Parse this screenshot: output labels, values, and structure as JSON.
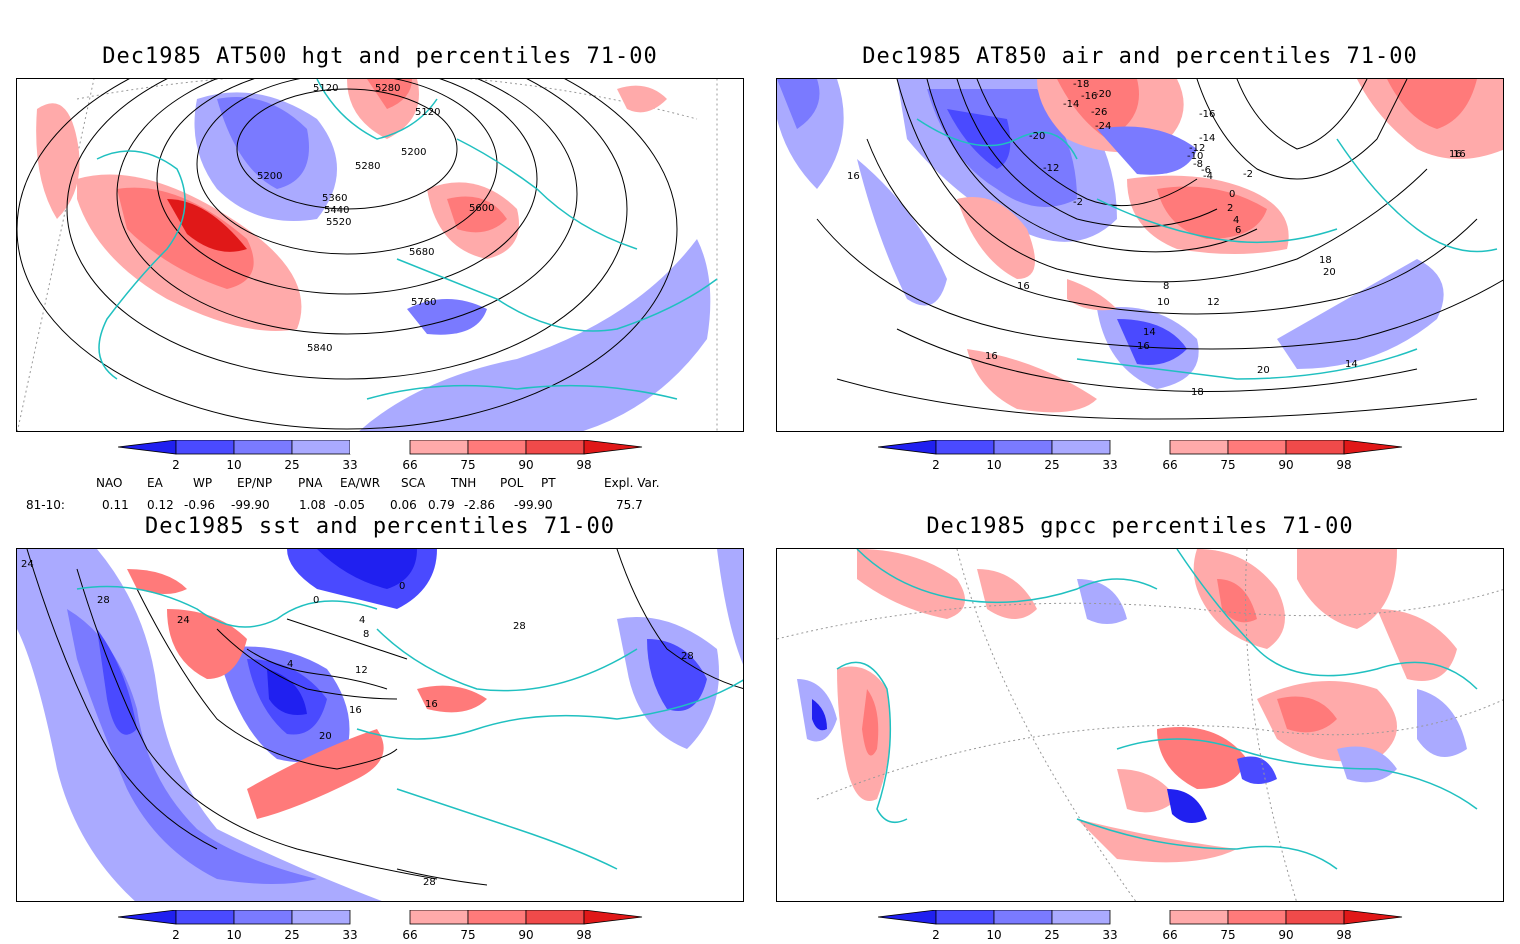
{
  "panels": [
    {
      "title": "Dec1985 AT500 hgt and percentiles 71-00",
      "contour_labels": [
        "5120",
        "5280",
        "5120",
        "5200",
        "5200",
        "5280",
        "5360",
        "5440",
        "5520",
        "5600",
        "5680",
        "5760",
        "5840"
      ]
    },
    {
      "title": "Dec1985 AT850 air and percentiles 71-00",
      "contour_labels": [
        "-18",
        "-20",
        "-16",
        "-14",
        "-26",
        "-24",
        "-20",
        "-16",
        "-14",
        "-12",
        "-10",
        "-8",
        "-6",
        "-4",
        "-2",
        "0",
        "2",
        "4",
        "6",
        "-12",
        "-2",
        "8",
        "10",
        "12",
        "14",
        "16",
        "16",
        "16",
        "16",
        "18",
        "20",
        "20",
        "18",
        "14",
        "16",
        "16"
      ]
    },
    {
      "title": "Dec1985 sst and percentiles 71-00",
      "contour_labels": [
        "24",
        "28",
        "24",
        "0",
        "4",
        "0",
        "4",
        "8",
        "12",
        "16",
        "20",
        "28",
        "16",
        "28",
        "28"
      ]
    },
    {
      "title": "Dec1985 gpcc percentiles 71-00",
      "contour_labels": []
    }
  ],
  "colorbar": {
    "ticks": [
      "2",
      "10",
      "25",
      "33",
      "66",
      "75",
      "90",
      "98"
    ],
    "colors": [
      "#2020f0",
      "#4a4aff",
      "#7a7aff",
      "#aaaaff",
      "#ffffff",
      "#ffaaaa",
      "#ff7a7a",
      "#f04a4a",
      "#e01818"
    ]
  },
  "indices": {
    "header": [
      "NAO",
      "EA",
      "WP",
      "EP/NP",
      "PNA",
      "EA/WR",
      "SCA",
      "TNH",
      "POL",
      "PT",
      "Expl. Var."
    ],
    "row_label": "81-10:",
    "values": [
      "0.11",
      "0.12",
      "-0.96",
      "-99.90",
      "1.08",
      "-0.05",
      "0.06",
      "0.79",
      "-2.86",
      "-99.90",
      "75.7"
    ]
  },
  "style": {
    "coast_color": "#20c0c0",
    "grid_color": "#999999"
  }
}
